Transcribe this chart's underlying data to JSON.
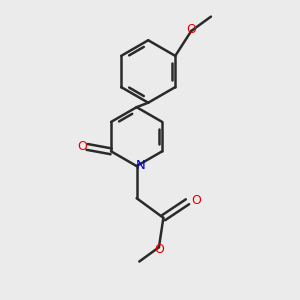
{
  "background_color": "#ebebeb",
  "bond_color": "#2a2a2a",
  "oxygen_color": "#e60000",
  "nitrogen_color": "#0000cc",
  "bond_width": 1.8,
  "figsize": [
    3.0,
    3.0
  ],
  "dpi": 100,
  "xlim": [
    -0.6,
    1.1
  ],
  "ylim": [
    -1.5,
    1.8
  ]
}
